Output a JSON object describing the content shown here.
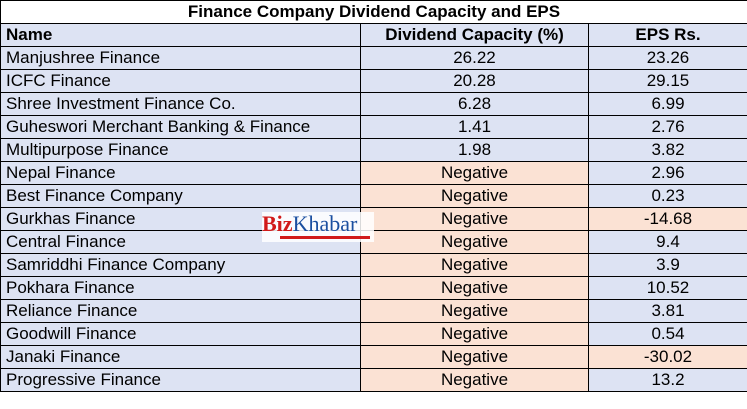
{
  "title": "Finance Company Dividend Capacity and EPS",
  "table": {
    "header": [
      "Name",
      "Dividend Capacity  (%)",
      "EPS  Rs."
    ],
    "rows": [
      [
        "Manjushree Finance",
        "26.22",
        "23.26"
      ],
      [
        "ICFC Finance",
        "20.28",
        "29.15"
      ],
      [
        "Shree Investment Finance Co.",
        "6.28",
        "6.99"
      ],
      [
        "Guheswori Merchant Banking & Finance",
        "1.41",
        "2.76"
      ],
      [
        "Multipurpose Finance",
        "1.98",
        "3.82"
      ],
      [
        "Nepal Finance",
        "Negative",
        "2.96"
      ],
      [
        "Best Finance Company",
        "Negative",
        "0.23"
      ],
      [
        "Gurkhas Finance",
        "Negative",
        "-14.68"
      ],
      [
        "Central Finance",
        "Negative",
        "9.4"
      ],
      [
        "Samriddhi Finance Company",
        "Negative",
        "3.9"
      ],
      [
        "Pokhara Finance",
        "Negative",
        "10.52"
      ],
      [
        "Reliance Finance",
        "Negative",
        "3.81"
      ],
      [
        "Goodwill Finance",
        "Negative",
        "0.54"
      ],
      [
        "Janaki Finance",
        "Negative",
        "-30.02"
      ],
      [
        "Progressive Finance",
        "Negative",
        "13.2"
      ]
    ]
  },
  "watermark": {
    "brand_red": "Biz",
    "brand_blue": "Khabar"
  }
}
